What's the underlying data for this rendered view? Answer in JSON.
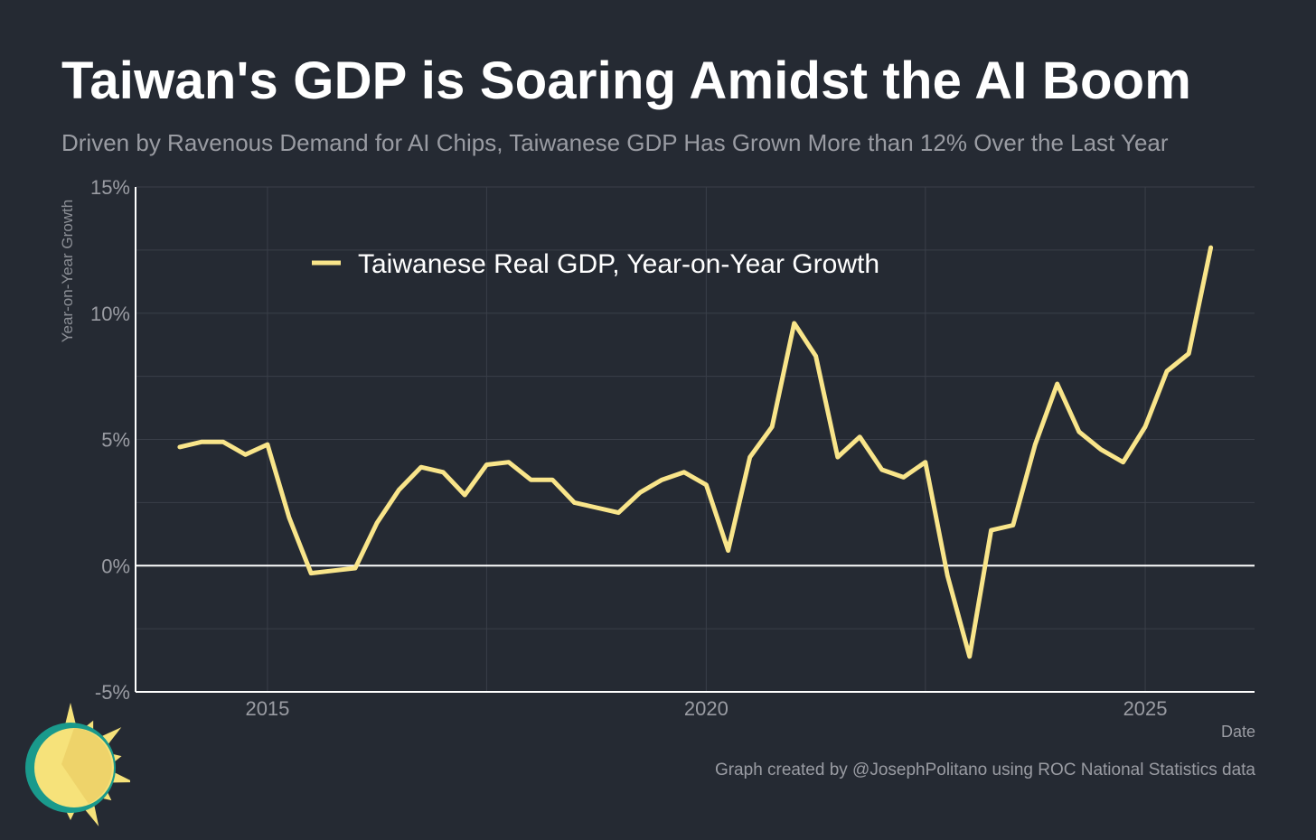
{
  "title": "Taiwan's GDP is Soaring Amidst the AI Boom",
  "subtitle": "Driven by Ravenous Demand for AI Chips, Taiwanese GDP Has Grown More than 12% Over the Last Year",
  "caption": "Graph created by @JosephPolitano using ROC National Statistics data",
  "colors": {
    "background": "#252a33",
    "line": "#f9e58a",
    "zero_line": "#ffffff",
    "grid": "#3a3f49",
    "axis": "#ffffff",
    "logo_teal": "#1a9a8c",
    "logo_yellow": "#f6e27a"
  },
  "logo": {
    "icon": "sun-icon"
  },
  "chart_data": {
    "type": "line",
    "title": "Taiwan's GDP is Soaring Amidst the AI Boom",
    "subtitle": "Driven by Ravenous Demand for AI Chips, Taiwanese GDP Has Grown More than 12% Over the Last Year",
    "xlabel": "Date",
    "ylabel": "Year-on-Year Growth",
    "ylim": [
      -5,
      15
    ],
    "xlim": [
      "2013-07-01",
      "2026-04-01"
    ],
    "grid": true,
    "legend_position": "top-left",
    "y_ticks": [
      {
        "value": -5,
        "label": "-5%"
      },
      {
        "value": 0,
        "label": "0%"
      },
      {
        "value": 5,
        "label": "5%"
      },
      {
        "value": 10,
        "label": "10%"
      },
      {
        "value": 15,
        "label": "15%"
      }
    ],
    "x_ticks": [
      {
        "value": "2015-01-01",
        "label": "2015"
      },
      {
        "value": "2020-01-01",
        "label": "2020"
      },
      {
        "value": "2025-01-01",
        "label": "2025"
      }
    ],
    "series": [
      {
        "name": "Taiwanese Real GDP, Year-on-Year Growth",
        "color": "#f9e58a",
        "points": [
          {
            "date": "2014-01-01",
            "value": 4.7
          },
          {
            "date": "2014-04-01",
            "value": 4.9
          },
          {
            "date": "2014-07-01",
            "value": 4.9
          },
          {
            "date": "2014-10-01",
            "value": 4.4
          },
          {
            "date": "2015-01-01",
            "value": 4.8
          },
          {
            "date": "2015-04-01",
            "value": 1.9
          },
          {
            "date": "2015-07-01",
            "value": -0.3
          },
          {
            "date": "2015-10-01",
            "value": -0.2
          },
          {
            "date": "2016-01-01",
            "value": -0.1
          },
          {
            "date": "2016-04-01",
            "value": 1.7
          },
          {
            "date": "2016-07-01",
            "value": 3.0
          },
          {
            "date": "2016-10-01",
            "value": 3.9
          },
          {
            "date": "2017-01-01",
            "value": 3.7
          },
          {
            "date": "2017-04-01",
            "value": 2.8
          },
          {
            "date": "2017-07-01",
            "value": 4.0
          },
          {
            "date": "2017-10-01",
            "value": 4.1
          },
          {
            "date": "2018-01-01",
            "value": 3.4
          },
          {
            "date": "2018-04-01",
            "value": 3.4
          },
          {
            "date": "2018-07-01",
            "value": 2.5
          },
          {
            "date": "2018-10-01",
            "value": 2.3
          },
          {
            "date": "2019-01-01",
            "value": 2.1
          },
          {
            "date": "2019-04-01",
            "value": 2.9
          },
          {
            "date": "2019-07-01",
            "value": 3.4
          },
          {
            "date": "2019-10-01",
            "value": 3.7
          },
          {
            "date": "2020-01-01",
            "value": 3.2
          },
          {
            "date": "2020-04-01",
            "value": 0.6
          },
          {
            "date": "2020-07-01",
            "value": 4.3
          },
          {
            "date": "2020-10-01",
            "value": 5.5
          },
          {
            "date": "2021-01-01",
            "value": 9.6
          },
          {
            "date": "2021-04-01",
            "value": 8.3
          },
          {
            "date": "2021-07-01",
            "value": 4.3
          },
          {
            "date": "2021-10-01",
            "value": 5.1
          },
          {
            "date": "2022-01-01",
            "value": 3.8
          },
          {
            "date": "2022-04-01",
            "value": 3.5
          },
          {
            "date": "2022-07-01",
            "value": 4.1
          },
          {
            "date": "2022-10-01",
            "value": -0.4
          },
          {
            "date": "2023-01-01",
            "value": -3.6
          },
          {
            "date": "2023-04-01",
            "value": 1.4
          },
          {
            "date": "2023-07-01",
            "value": 1.6
          },
          {
            "date": "2023-10-01",
            "value": 4.8
          },
          {
            "date": "2024-01-01",
            "value": 7.2
          },
          {
            "date": "2024-04-01",
            "value": 5.3
          },
          {
            "date": "2024-07-01",
            "value": 4.6
          },
          {
            "date": "2024-10-01",
            "value": 4.1
          },
          {
            "date": "2025-01-01",
            "value": 5.5
          },
          {
            "date": "2025-04-01",
            "value": 7.7
          },
          {
            "date": "2025-07-01",
            "value": 8.4
          },
          {
            "date": "2025-10-01",
            "value": 12.6
          }
        ]
      }
    ]
  }
}
